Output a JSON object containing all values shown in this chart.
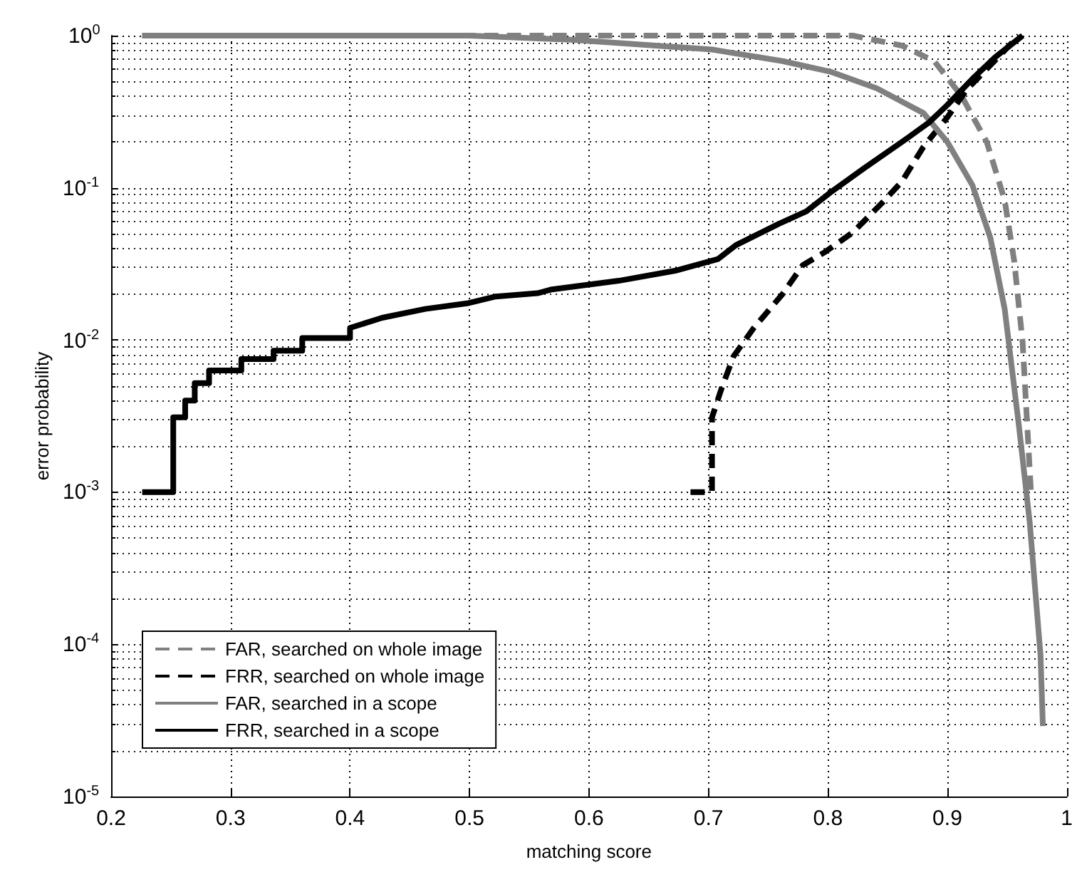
{
  "chart_data": {
    "type": "line",
    "xlabel": "matching score",
    "ylabel": "error probability",
    "log": "y",
    "grid": true,
    "legend": "bottom left",
    "marker": "none",
    "xlim": [
      0.2,
      1.0
    ],
    "xticks": [
      0.2,
      0.3,
      0.4,
      0.5,
      0.6,
      0.7,
      0.8,
      0.9,
      {
        "value": 1.0,
        "label": "1"
      }
    ],
    "ylim": [
      1e-05,
      1
    ],
    "yticks": [
      {
        "value": 1e-05,
        "label": "10$^{-5}$"
      },
      {
        "value": 0.0001,
        "label": "10$^{-4}$"
      },
      {
        "value": 0.001,
        "label": "10$^{-3}$"
      },
      {
        "value": 0.01,
        "label": "10$^{-2}$"
      },
      {
        "value": 0.1,
        "label": "10$^{-1}$"
      },
      {
        "value": 1,
        "label": "10$^{0}$"
      }
    ],
    "series": [
      {
        "name": "FAR, searched on whole image",
        "color": "#808080",
        "line_style": "dashed",
        "x": [
          0.226,
          0.821,
          0.862,
          0.889,
          0.912,
          0.933,
          0.948,
          0.956,
          0.963,
          0.97
        ],
        "values": [
          1,
          1,
          0.86,
          0.68,
          0.4,
          0.2,
          0.083,
          0.033,
          0.0097,
          0.001
        ]
      },
      {
        "name": "FRR, searched on whole image",
        "color": "#000000",
        "line_style": "dashed",
        "x": [
          0.685,
          0.703,
          0.703,
          0.711,
          0.721,
          0.738,
          0.762,
          0.779,
          0.798,
          0.821,
          0.845,
          0.862,
          0.88,
          0.9,
          0.916,
          0.96
        ],
        "values": [
          0.001,
          0.001,
          0.0031,
          0.0048,
          0.0078,
          0.012,
          0.02,
          0.031,
          0.038,
          0.051,
          0.079,
          0.11,
          0.186,
          0.29,
          0.44,
          1
        ]
      },
      {
        "name": "FAR, searched in a scope",
        "color": "#808080",
        "line_style": "solid",
        "x": [
          0.226,
          0.5,
          0.585,
          0.703,
          0.762,
          0.802,
          0.841,
          0.88,
          0.9,
          0.921,
          0.936,
          0.948,
          0.96,
          0.969,
          0.978,
          0.98
        ],
        "values": [
          1,
          1,
          0.94,
          0.81,
          0.68,
          0.58,
          0.45,
          0.31,
          0.2,
          0.104,
          0.047,
          0.016,
          0.0027,
          0.00063,
          8.5e-05,
          2.9e-05
        ]
      },
      {
        "name": "FRR, searched in a scope",
        "color": "#000000",
        "line_style": "solid",
        "x": [
          0.226,
          0.252,
          0.252,
          0.262,
          0.262,
          0.27,
          0.27,
          0.282,
          0.282,
          0.309,
          0.309,
          0.336,
          0.336,
          0.36,
          0.36,
          0.4,
          0.4,
          0.427,
          0.463,
          0.498,
          0.522,
          0.557,
          0.569,
          0.625,
          0.672,
          0.708,
          0.723,
          0.759,
          0.782,
          0.802,
          0.83,
          0.862,
          0.885,
          0.9,
          0.921,
          0.94,
          0.963
        ],
        "values": [
          0.001,
          0.001,
          0.0031,
          0.0031,
          0.004,
          0.004,
          0.0052,
          0.0052,
          0.0063,
          0.0063,
          0.0075,
          0.0075,
          0.0085,
          0.0085,
          0.0103,
          0.0103,
          0.012,
          0.014,
          0.016,
          0.0174,
          0.0193,
          0.0203,
          0.0215,
          0.0245,
          0.0285,
          0.034,
          0.042,
          0.058,
          0.07,
          0.093,
          0.134,
          0.2,
          0.27,
          0.35,
          0.52,
          0.72,
          1
        ]
      }
    ]
  }
}
